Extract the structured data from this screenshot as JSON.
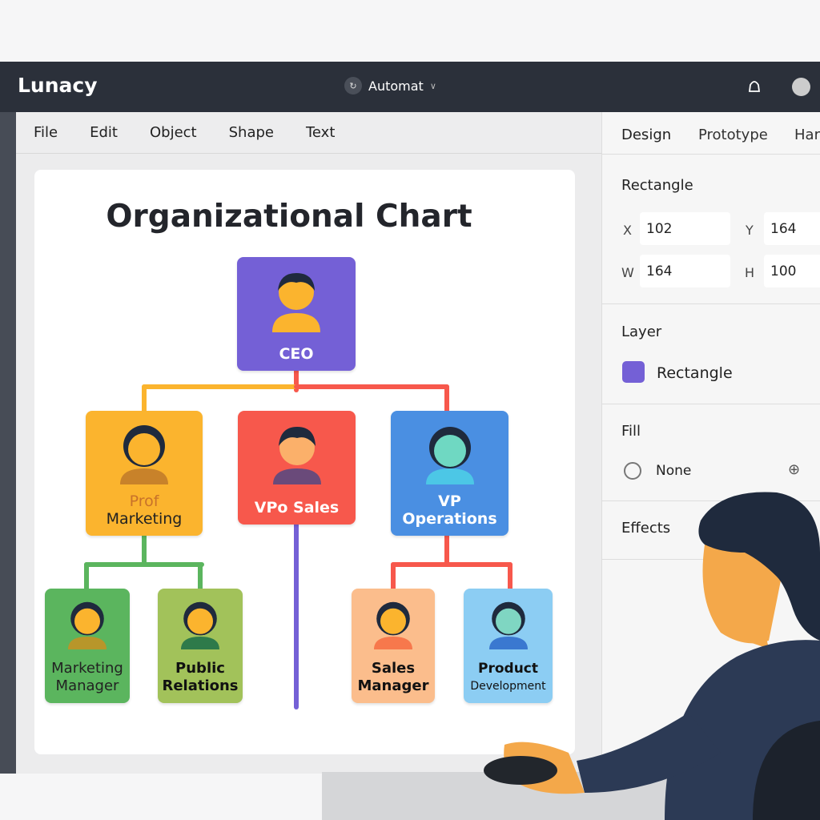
{
  "app": {
    "title": "Lunacy",
    "project": "Automat",
    "project_icon": "refresh-icon",
    "project_chevron": "chevron-down-icon"
  },
  "menu": [
    "File",
    "Edit",
    "Object",
    "Shape",
    "Text"
  ],
  "panel": {
    "tabs": [
      "Design",
      "Prototype",
      "Har"
    ],
    "selection_title": "Rectangle",
    "x_label": "X",
    "x": "102",
    "y_label": "Y",
    "y": "164",
    "w_label": "W",
    "w": "164",
    "h_label": "H",
    "h": "100",
    "layer_title": "Layer",
    "layer_name": "Rectangle",
    "layer_color": "#7460d6",
    "fill_title": "Fill",
    "fill_value": "None",
    "effects_title": "Effects"
  },
  "chart": {
    "title": "Organizational Chart",
    "nodes": [
      {
        "label": "CEO",
        "color": "#7460d6"
      },
      {
        "label_line1": "Prof",
        "label_line2": "Marketing",
        "color": "#fbb42e"
      },
      {
        "label": "VPo Sales",
        "color": "#f7584c"
      },
      {
        "label_line1": "VP",
        "label_line2": "Operations",
        "color": "#4a8fe2"
      },
      {
        "label_line1": "Marketing",
        "label_line2": "Manager",
        "color": "#5bb55e"
      },
      {
        "label_line1": "Public",
        "label_line2": "Relations",
        "color": "#a2c25a"
      },
      {
        "label_line1": "Sales",
        "label_line2": "Manager",
        "color": "#fbbd8c"
      },
      {
        "label_line1": "Product",
        "label_line2": "Development",
        "color": "#8ccdf3"
      }
    ]
  }
}
